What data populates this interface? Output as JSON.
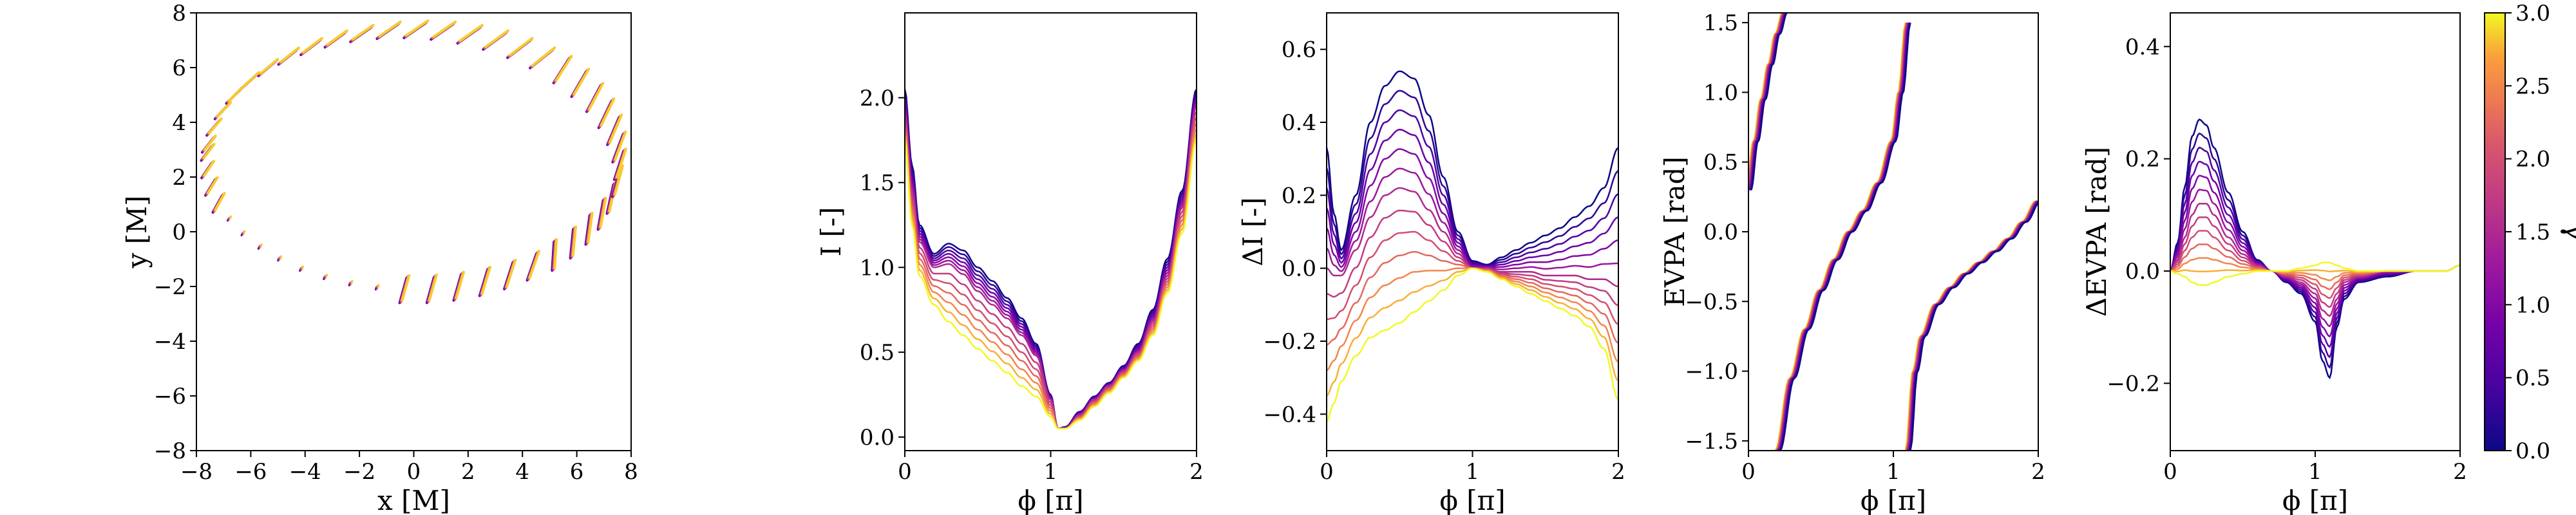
{
  "chart_data": [
    {
      "id": "orbit",
      "type": "scatter",
      "xlabel": "x [M]",
      "ylabel": "y [M]",
      "xlim": [
        -8,
        8
      ],
      "ylim": [
        -8,
        8
      ],
      "xticks": [
        -8,
        -6,
        -4,
        -2,
        0,
        2,
        4,
        6,
        8
      ],
      "yticks": [
        -8,
        -6,
        -4,
        -2,
        0,
        2,
        4,
        6,
        8
      ],
      "xtick_labels": [
        "−8",
        "−6",
        "−4",
        "−2",
        "0",
        "2",
        "4",
        "6",
        "8"
      ],
      "ytick_labels": [
        "−8",
        "−6",
        "−4",
        "−2",
        "0",
        "2",
        "4",
        "6",
        "8"
      ],
      "orbit": {
        "semi_major": 7.6,
        "semi_minor": 4.8,
        "center": [
          0,
          2.6
        ],
        "marker_count": 48
      },
      "note_colors": "polarization ticks colored by gamma"
    },
    {
      "id": "intensity",
      "type": "line",
      "xlabel": "ϕ [π]",
      "ylabel": "I [-]",
      "xlim": [
        0,
        2
      ],
      "ylim": [
        -0.08,
        2.5
      ],
      "xticks": [
        0,
        1,
        2
      ],
      "yticks": [
        0,
        0.5,
        1.0,
        1.5,
        2.0
      ],
      "xtick_labels": [
        "0",
        "1",
        "2"
      ],
      "ytick_labels": [
        "0.0",
        "0.5",
        "1.0",
        "1.5",
        "2.0"
      ],
      "x": [
        0,
        0.05,
        0.1,
        0.2,
        0.3,
        0.4,
        0.5,
        0.6,
        0.7,
        0.8,
        0.9,
        1.0,
        1.05,
        1.1,
        1.2,
        1.3,
        1.4,
        1.5,
        1.6,
        1.7,
        1.8,
        1.9,
        2.0
      ],
      "series": [
        {
          "gamma": 0.0,
          "values": [
            2.05,
            1.6,
            1.25,
            1.08,
            1.14,
            1.1,
            1.0,
            0.92,
            0.82,
            0.7,
            0.55,
            0.25,
            0.05,
            0.06,
            0.15,
            0.24,
            0.32,
            0.42,
            0.55,
            0.75,
            1.05,
            1.45,
            2.05
          ]
        },
        {
          "gamma": 1.5,
          "values": [
            1.9,
            1.45,
            1.15,
            1.0,
            1.02,
            0.96,
            0.86,
            0.78,
            0.7,
            0.6,
            0.48,
            0.22,
            0.05,
            0.05,
            0.13,
            0.22,
            0.3,
            0.39,
            0.5,
            0.68,
            0.95,
            1.35,
            1.95
          ]
        },
        {
          "gamma": 3.0,
          "values": [
            1.75,
            1.25,
            0.95,
            0.78,
            0.68,
            0.6,
            0.52,
            0.45,
            0.38,
            0.3,
            0.24,
            0.12,
            0.05,
            0.05,
            0.1,
            0.18,
            0.26,
            0.35,
            0.45,
            0.6,
            0.85,
            1.2,
            1.75
          ]
        }
      ]
    },
    {
      "id": "delta_intensity",
      "type": "line",
      "xlabel": "ϕ [π]",
      "ylabel": "ΔI [-]",
      "xlim": [
        0,
        2
      ],
      "ylim": [
        -0.5,
        0.7
      ],
      "xticks": [
        0,
        1,
        2
      ],
      "yticks": [
        -0.4,
        -0.2,
        0.0,
        0.2,
        0.4,
        0.6
      ],
      "xtick_labels": [
        "0",
        "1",
        "2"
      ],
      "ytick_labels": [
        "−0.4",
        "−0.2",
        "0.0",
        "0.2",
        "0.4",
        "0.6"
      ],
      "x": [
        0,
        0.05,
        0.1,
        0.2,
        0.3,
        0.4,
        0.5,
        0.6,
        0.7,
        0.8,
        0.9,
        1.0,
        1.1,
        1.2,
        1.3,
        1.4,
        1.5,
        1.6,
        1.7,
        1.8,
        1.9,
        2.0
      ],
      "series": [
        {
          "gamma": 0.0,
          "values": [
            0.33,
            0.15,
            0.05,
            0.2,
            0.4,
            0.5,
            0.54,
            0.52,
            0.42,
            0.25,
            0.1,
            0.02,
            0.01,
            0.03,
            0.05,
            0.07,
            0.09,
            0.11,
            0.14,
            0.17,
            0.22,
            0.33
          ]
        },
        {
          "gamma": 1.5,
          "values": [
            0.0,
            -0.02,
            -0.02,
            0.05,
            0.14,
            0.2,
            0.22,
            0.21,
            0.16,
            0.1,
            0.04,
            0.0,
            0.0,
            -0.01,
            -0.01,
            -0.01,
            -0.02,
            -0.02,
            -0.02,
            -0.03,
            -0.03,
            -0.05
          ]
        },
        {
          "gamma": 3.0,
          "values": [
            -0.42,
            -0.37,
            -0.31,
            -0.24,
            -0.19,
            -0.17,
            -0.15,
            -0.12,
            -0.09,
            -0.06,
            -0.02,
            0.0,
            -0.01,
            -0.03,
            -0.05,
            -0.07,
            -0.09,
            -0.11,
            -0.13,
            -0.16,
            -0.22,
            -0.36
          ]
        }
      ]
    },
    {
      "id": "evpa",
      "type": "line",
      "xlabel": "ϕ [π]",
      "ylabel": "EVPA [rad]",
      "xlim": [
        0,
        2
      ],
      "ylim": [
        -1.57,
        1.57
      ],
      "xticks": [
        0,
        1,
        2
      ],
      "yticks": [
        -1.5,
        -1.0,
        -0.5,
        0.0,
        0.5,
        1.0,
        1.5
      ],
      "xtick_labels": [
        "0",
        "1",
        "2"
      ],
      "ytick_labels": [
        "−1.5",
        "−1.0",
        "−0.5",
        "0.0",
        "0.5",
        "1.0",
        "1.5"
      ],
      "segments": [
        {
          "x": [
            0,
            0.05,
            0.1,
            0.15,
            0.2,
            0.25
          ],
          "values": [
            0.3,
            0.65,
            0.95,
            1.2,
            1.42,
            1.57
          ]
        },
        {
          "x": [
            0.2,
            0.3,
            0.4,
            0.5,
            0.6,
            0.7,
            0.8,
            0.9,
            1.0,
            1.05,
            1.1
          ],
          "values": [
            -1.57,
            -1.05,
            -0.7,
            -0.42,
            -0.2,
            0.0,
            0.15,
            0.35,
            0.65,
            1.0,
            1.5
          ]
        },
        {
          "x": [
            1.1,
            1.15,
            1.2,
            1.3,
            1.4,
            1.5,
            1.6,
            1.7,
            1.8,
            1.9,
            2.0
          ],
          "values": [
            -1.57,
            -1.0,
            -0.75,
            -0.52,
            -0.4,
            -0.3,
            -0.22,
            -0.14,
            -0.05,
            0.07,
            0.22
          ]
        }
      ]
    },
    {
      "id": "delta_evpa",
      "type": "line",
      "xlabel": "ϕ [π]",
      "ylabel": "ΔEVPA [rad]",
      "xlim": [
        0,
        2
      ],
      "ylim": [
        -0.32,
        0.46
      ],
      "xticks": [
        0,
        1,
        2
      ],
      "yticks": [
        -0.2,
        0.0,
        0.2,
        0.4
      ],
      "xtick_labels": [
        "0",
        "1",
        "2"
      ],
      "ytick_labels": [
        "−0.2",
        "0.0",
        "0.2",
        "0.4"
      ],
      "x": [
        0,
        0.05,
        0.1,
        0.15,
        0.2,
        0.25,
        0.3,
        0.4,
        0.5,
        0.6,
        0.7,
        0.8,
        0.9,
        1.0,
        1.05,
        1.1,
        1.15,
        1.2,
        1.3,
        1.5,
        1.7,
        1.9,
        2.0
      ],
      "series": [
        {
          "gamma": 0.0,
          "values": [
            0.0,
            0.05,
            0.15,
            0.24,
            0.27,
            0.26,
            0.22,
            0.14,
            0.07,
            0.02,
            0.0,
            -0.02,
            -0.04,
            -0.09,
            -0.16,
            -0.19,
            -0.1,
            -0.05,
            -0.02,
            -0.01,
            0.0,
            0.0,
            0.01
          ]
        },
        {
          "gamma": 1.5,
          "values": [
            0.0,
            0.02,
            0.06,
            0.1,
            0.12,
            0.12,
            0.1,
            0.06,
            0.03,
            0.01,
            0.0,
            -0.01,
            -0.02,
            -0.04,
            -0.07,
            -0.08,
            -0.05,
            -0.02,
            -0.01,
            0.0,
            0.0,
            0.0,
            0.01
          ]
        },
        {
          "gamma": 3.0,
          "values": [
            0.0,
            -0.005,
            -0.01,
            -0.02,
            -0.025,
            -0.025,
            -0.02,
            -0.01,
            -0.005,
            0.0,
            0.0,
            0.0,
            0.005,
            0.01,
            0.015,
            0.015,
            0.01,
            0.005,
            0.0,
            0.0,
            0.0,
            0.0,
            0.01
          ]
        }
      ]
    }
  ],
  "colorbar": {
    "label": "γ",
    "min": 0.0,
    "max": 3.0,
    "ticks": [
      0.0,
      0.5,
      1.0,
      1.5,
      2.0,
      2.5,
      3.0
    ],
    "tick_labels": [
      "0.0",
      "0.5",
      "1.0",
      "1.5",
      "2.0",
      "2.5",
      "3.0"
    ],
    "colormap": "plasma"
  },
  "colors": {
    "gamma_low": "#0d0887",
    "gamma_mid": "#cc4778",
    "gamma_high": "#f0f921"
  }
}
